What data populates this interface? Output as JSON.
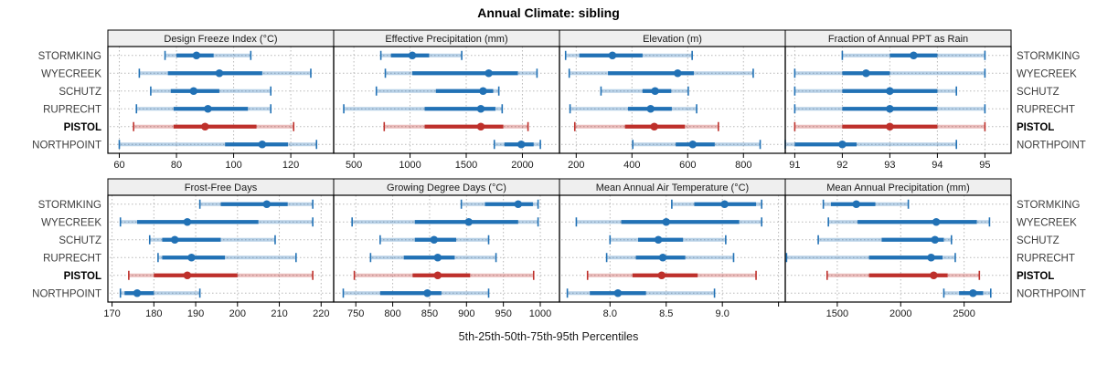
{
  "title": "Annual Climate: sibling",
  "xlabel": "5th-25th-50th-75th-95th Percentiles",
  "stations": [
    "STORMKING",
    "WYECREEK",
    "SCHUTZ",
    "RUPRECHT",
    "PISTOL",
    "NORTHPOINT"
  ],
  "highlight_station": "PISTOL",
  "colors": {
    "series_blue": "#2171b5",
    "series_blue_light": "rgba(33,113,181,0.32)",
    "highlight_red": "#be302b",
    "highlight_red_light": "rgba(190,48,43,0.32)",
    "strip_bg": "#efefef",
    "panel_border": "#000000",
    "grid": "#b8b8b8",
    "station_label": "#3d3d3d",
    "tick_label": "#1a1a1a"
  },
  "chart_data": {
    "type": "dotplot-percentile-ranges",
    "percentile_labels": [
      "5th",
      "25th",
      "50th",
      "75th",
      "95th"
    ],
    "station_order": [
      "STORMKING",
      "WYECREEK",
      "SCHUTZ",
      "RUPRECHT",
      "PISTOL",
      "NORTHPOINT"
    ],
    "panels": [
      {
        "title": "Design Freeze Index (°C)",
        "grid_row": 0,
        "grid_col": 0,
        "xlim": [
          56,
          135
        ],
        "ticks": [
          {
            "v": 60,
            "label": "60"
          },
          {
            "v": 80,
            "label": "80"
          },
          {
            "v": 100,
            "label": "100"
          },
          {
            "v": 120,
            "label": "120"
          }
        ],
        "values": [
          [
            76,
            80,
            87,
            93,
            106
          ],
          [
            67,
            77,
            95,
            110,
            127
          ],
          [
            71,
            78,
            86,
            95,
            113
          ],
          [
            66,
            79,
            91,
            105,
            113
          ],
          [
            65,
            79,
            90,
            108,
            121
          ],
          [
            60,
            97,
            110,
            119,
            129
          ]
        ]
      },
      {
        "title": "Effective Precipitation (mm)",
        "grid_row": 0,
        "grid_col": 1,
        "xlim": [
          320,
          2330
        ],
        "ticks": [
          {
            "v": 500,
            "label": "500"
          },
          {
            "v": 1000,
            "label": "1000"
          },
          {
            "v": 1500,
            "label": "1500"
          },
          {
            "v": 2000,
            "label": "2000"
          }
        ],
        "values": [
          [
            740,
            830,
            1020,
            1170,
            1460
          ],
          [
            780,
            1020,
            1700,
            1960,
            2130
          ],
          [
            700,
            1230,
            1650,
            1740,
            1790
          ],
          [
            410,
            1130,
            1630,
            1760,
            1820
          ],
          [
            770,
            1130,
            1630,
            1830,
            2050
          ],
          [
            1750,
            1840,
            1990,
            2100,
            2160
          ]
        ]
      },
      {
        "title": "Elevation (m)",
        "grid_row": 0,
        "grid_col": 2,
        "xlim": [
          140,
          950
        ],
        "ticks": [
          {
            "v": 200,
            "label": "200"
          },
          {
            "v": 400,
            "label": "400"
          },
          {
            "v": 600,
            "label": "600"
          },
          {
            "v": 800,
            "label": "800"
          }
        ],
        "values": [
          [
            162,
            211,
            330,
            438,
            616
          ],
          [
            175,
            314,
            564,
            622,
            835
          ],
          [
            289,
            438,
            483,
            541,
            602
          ],
          [
            178,
            386,
            467,
            543,
            632
          ],
          [
            195,
            375,
            480,
            590,
            710
          ],
          [
            403,
            557,
            618,
            697,
            860
          ]
        ]
      },
      {
        "title": "Fraction of Annual PPT as Rain",
        "grid_row": 0,
        "grid_col": 3,
        "xlim": [
          90.8,
          95.55
        ],
        "ticks": [
          {
            "v": 91,
            "label": "91"
          },
          {
            "v": 92,
            "label": "92"
          },
          {
            "v": 93,
            "label": "93"
          },
          {
            "v": 94,
            "label": "94"
          },
          {
            "v": 95,
            "label": "95"
          }
        ],
        "values": [
          [
            92,
            93,
            93.5,
            94,
            95
          ],
          [
            91,
            92,
            92.5,
            93,
            95
          ],
          [
            91,
            92,
            93,
            94,
            94.4
          ],
          [
            91,
            92,
            93,
            94,
            95
          ],
          [
            91,
            92,
            93,
            94,
            95
          ],
          [
            90.8,
            91,
            92,
            92.3,
            94.4
          ]
        ]
      },
      {
        "title": "Frost-Free Days",
        "grid_row": 1,
        "grid_col": 0,
        "xlim": [
          169,
          223
        ],
        "ticks": [
          {
            "v": 170,
            "label": "170"
          },
          {
            "v": 180,
            "label": "180"
          },
          {
            "v": 190,
            "label": "190"
          },
          {
            "v": 200,
            "label": "200"
          },
          {
            "v": 210,
            "label": "210"
          },
          {
            "v": 220,
            "label": "220"
          }
        ],
        "values": [
          [
            191,
            196,
            207,
            212,
            218
          ],
          [
            172,
            176,
            188,
            205,
            218
          ],
          [
            179,
            182,
            185,
            196,
            209
          ],
          [
            181,
            182,
            189,
            197,
            214
          ],
          [
            174,
            180,
            188,
            200,
            218
          ],
          [
            172,
            173,
            176,
            180,
            191
          ]
        ]
      },
      {
        "title": "Growing Degree Days (°C)",
        "grid_row": 1,
        "grid_col": 1,
        "xlim": [
          720,
          1026
        ],
        "ticks": [
          {
            "v": 750,
            "label": "750"
          },
          {
            "v": 800,
            "label": "800"
          },
          {
            "v": 850,
            "label": "850"
          },
          {
            "v": 900,
            "label": "900"
          },
          {
            "v": 950,
            "label": "950"
          },
          {
            "v": 1000,
            "label": "1000"
          }
        ],
        "values": [
          [
            893,
            925,
            970,
            990,
            997
          ],
          [
            745,
            830,
            903,
            970,
            997
          ],
          [
            783,
            830,
            856,
            886,
            930
          ],
          [
            770,
            815,
            861,
            884,
            940
          ],
          [
            748,
            827,
            861,
            905,
            991
          ],
          [
            733,
            783,
            847,
            866,
            930
          ]
        ]
      },
      {
        "title": "Mean Annual Air Temperature (°C)",
        "grid_row": 1,
        "grid_col": 2,
        "xlim": [
          7.55,
          9.56
        ],
        "ticks": [
          {
            "v": 8.0,
            "label": "8.0"
          },
          {
            "v": 8.5,
            "label": "8.5"
          },
          {
            "v": 9.0,
            "label": "9.0"
          },
          {
            "v": 9.5,
            "label": ""
          }
        ],
        "values": [
          [
            8.55,
            8.75,
            9.02,
            9.3,
            9.35
          ],
          [
            7.7,
            8.1,
            8.5,
            9.15,
            9.35
          ],
          [
            8.0,
            8.25,
            8.43,
            8.65,
            9.03
          ],
          [
            7.97,
            8.23,
            8.47,
            8.67,
            9.1
          ],
          [
            7.8,
            8.2,
            8.46,
            8.78,
            9.3
          ],
          [
            7.62,
            7.82,
            8.07,
            8.32,
            8.93
          ]
        ]
      },
      {
        "title": "Mean Annual Precipitation (mm)",
        "grid_row": 1,
        "grid_col": 3,
        "xlim": [
          1090,
          2870
        ],
        "ticks": [
          {
            "v": 1500,
            "label": "1500"
          },
          {
            "v": 2000,
            "label": "2000"
          },
          {
            "v": 2500,
            "label": "2500"
          }
        ],
        "values": [
          [
            1390,
            1450,
            1650,
            1800,
            2060
          ],
          [
            1430,
            1660,
            2280,
            2600,
            2700
          ],
          [
            1350,
            1850,
            2270,
            2340,
            2400
          ],
          [
            1100,
            1750,
            2240,
            2330,
            2430
          ],
          [
            1420,
            1750,
            2260,
            2370,
            2620
          ],
          [
            2340,
            2460,
            2570,
            2650,
            2710
          ]
        ]
      }
    ]
  }
}
